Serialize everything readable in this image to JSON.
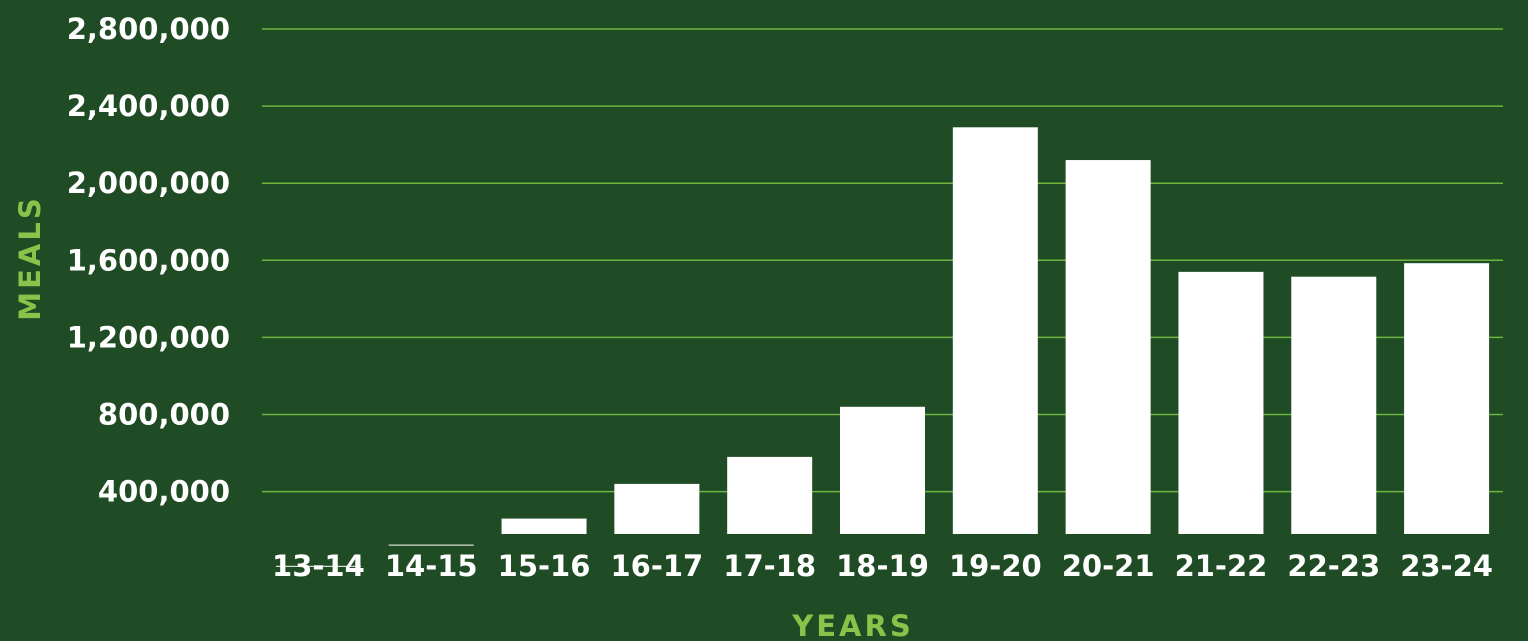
{
  "colors": {
    "background": "#1f4b25",
    "bar": "#ffffff",
    "grid": "#6fb43f",
    "axis_title": "#8bc34a",
    "tick_text": "#ffffff"
  },
  "chart_data": {
    "type": "bar",
    "title": "",
    "xlabel": "YEARS",
    "ylabel": "MEALS",
    "categories": [
      "13-14",
      "14-15",
      "15-16",
      "16-17",
      "17-18",
      "18-19",
      "19-20",
      "20-21",
      "21-22",
      "22-23",
      "23-24"
    ],
    "values": [
      15000,
      125000,
      260000,
      440000,
      580000,
      840000,
      2290000,
      2120000,
      1540000,
      1515000,
      1585000
    ],
    "y_ticks": [
      400000,
      800000,
      1200000,
      1600000,
      2000000,
      2400000,
      2800000
    ],
    "y_tick_labels": [
      "400,000",
      "800,000",
      "1,200,000",
      "1,600,000",
      "2,000,000",
      "2,400,000",
      "2,800,000"
    ],
    "ylim": [
      180000,
      2800000
    ],
    "grid": true,
    "legend": "none"
  }
}
